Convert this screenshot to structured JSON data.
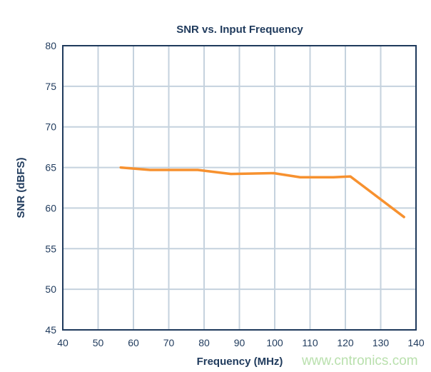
{
  "chart_data": {
    "type": "line",
    "title": "SNR vs. Input Frequency",
    "xlabel": "Frequency (MHz)",
    "ylabel": "SNR (dBFS)",
    "xlim": [
      40,
      140
    ],
    "ylim": [
      45,
      80
    ],
    "xticks": [
      40,
      50,
      60,
      70,
      80,
      90,
      100,
      110,
      120,
      130,
      140
    ],
    "yticks": [
      45,
      50,
      55,
      60,
      65,
      70,
      75,
      80
    ],
    "grid": true,
    "series": [
      {
        "color": "#f7912f",
        "x": [
          56.4,
          64.7,
          78.2,
          87.6,
          99.7,
          107.2,
          116.6,
          121.4,
          136.6
        ],
        "y": [
          65.0,
          64.7,
          64.7,
          64.2,
          64.3,
          63.8,
          63.8,
          63.9,
          58.9
        ]
      }
    ]
  },
  "watermark": "www.cntronics.com",
  "colors": {
    "grid": "#c5d2de",
    "axis": "#1f3a5c",
    "line": "#f7912f",
    "watermark": "#b9e0ad"
  }
}
